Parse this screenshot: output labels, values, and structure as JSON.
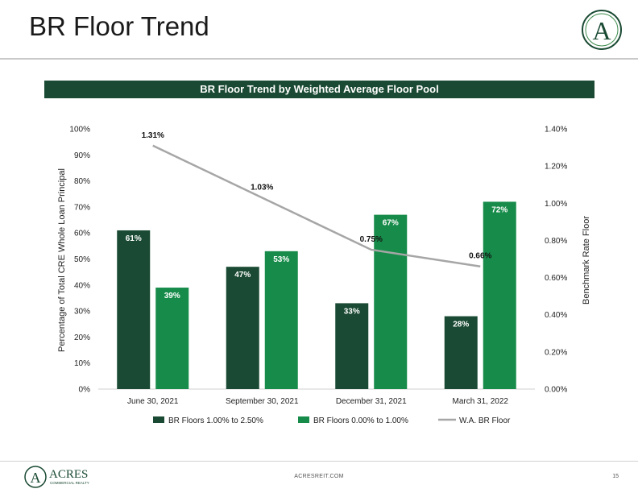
{
  "slide": {
    "title": "BR Floor Trend",
    "banner": "BR Floor Trend by Weighted Average Floor Pool",
    "footer_url": "ACRESREIT.COM",
    "page_number": "15",
    "logo_top_letter": "A",
    "footer_logo_letter": "A",
    "footer_logo_name": "ACRES",
    "footer_logo_sub": "COMMERCIAL REALTY"
  },
  "colors": {
    "dark_green": "#1a4a33",
    "bright_green": "#178c4a",
    "line_gray": "#a6a6a6"
  },
  "chart_data": {
    "type": "bar",
    "categories": [
      "June 30, 2021",
      "September 30, 2021",
      "December 31, 2021",
      "March 31, 2022"
    ],
    "series": [
      {
        "name": "BR Floors 1.00% to 2.50%",
        "type": "bar",
        "axis": "left",
        "values": [
          61,
          47,
          33,
          28
        ],
        "labels": [
          "61%",
          "47%",
          "33%",
          "28%"
        ]
      },
      {
        "name": "BR Floors 0.00% to 1.00%",
        "type": "bar",
        "axis": "left",
        "values": [
          39,
          53,
          67,
          72
        ],
        "labels": [
          "39%",
          "53%",
          "67%",
          "72%"
        ]
      },
      {
        "name": "W.A. BR Floor",
        "type": "line",
        "axis": "right",
        "values": [
          1.31,
          1.03,
          0.75,
          0.66
        ],
        "labels": [
          "1.31%",
          "1.03%",
          "0.75%",
          "0.66%"
        ]
      }
    ],
    "ylabel": "Percentage of Total CRE Whole Loan Principal",
    "y2label": "Benchmark Rate Floor",
    "ylim": [
      0,
      100
    ],
    "y2lim": [
      0,
      1.4
    ],
    "yticks": [
      "0%",
      "10%",
      "20%",
      "30%",
      "40%",
      "50%",
      "60%",
      "70%",
      "80%",
      "90%",
      "100%"
    ],
    "y2ticks": [
      "0.00%",
      "0.20%",
      "0.40%",
      "0.60%",
      "0.80%",
      "1.00%",
      "1.20%",
      "1.40%"
    ],
    "grid": false,
    "legend": "bottom"
  }
}
